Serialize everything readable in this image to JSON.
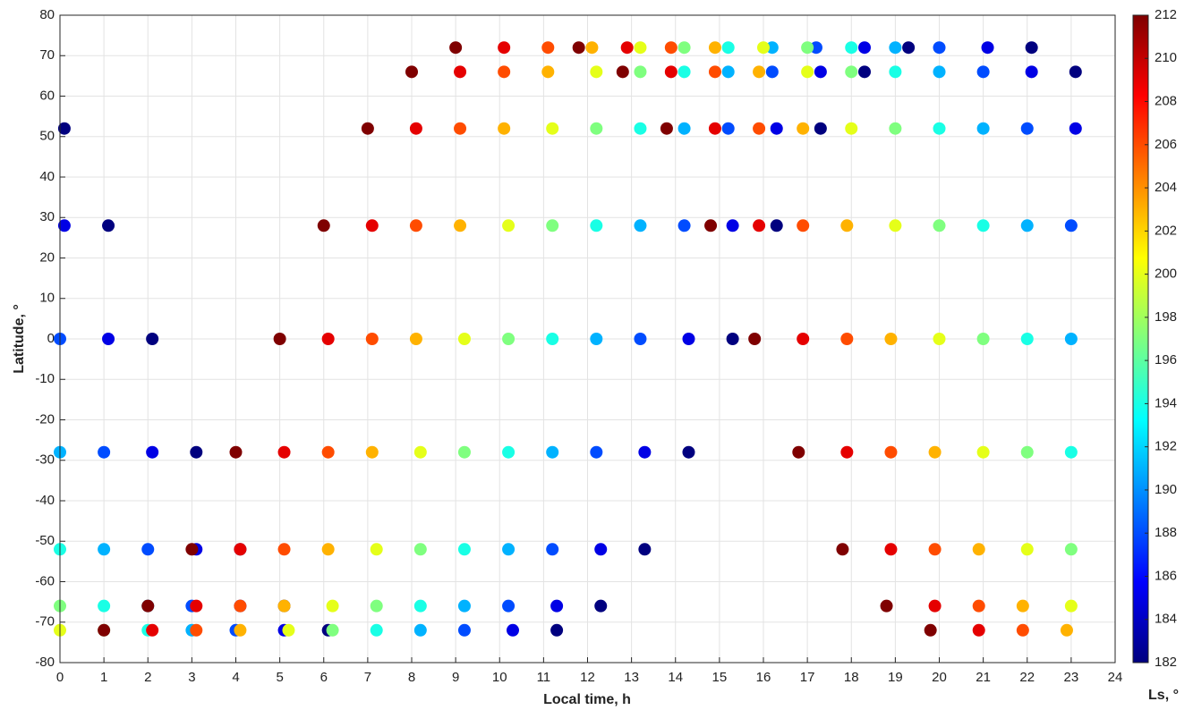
{
  "chart_data": {
    "type": "scatter",
    "xlabel": "Local time, h",
    "ylabel": "Latitude, °",
    "colorbar_label": "Ls, °",
    "xlim": [
      0,
      24
    ],
    "xticks": [
      0,
      1,
      2,
      3,
      4,
      5,
      6,
      7,
      8,
      9,
      10,
      11,
      12,
      13,
      14,
      15,
      16,
      17,
      18,
      19,
      20,
      21,
      22,
      23,
      24
    ],
    "ylim": [
      -80,
      80
    ],
    "yticks": [
      -80,
      -70,
      -60,
      -50,
      -40,
      -30,
      -20,
      -10,
      0,
      10,
      20,
      30,
      40,
      50,
      60,
      70,
      80
    ],
    "clim": [
      182,
      212
    ],
    "cticks": [
      182,
      184,
      186,
      188,
      190,
      192,
      194,
      196,
      198,
      200,
      202,
      204,
      206,
      208,
      210,
      212
    ],
    "colormap": [
      "#00007f",
      "#0000ff",
      "#007fff",
      "#00ffff",
      "#7fff7f",
      "#ffff00",
      "#ff7f00",
      "#ff0000",
      "#7f0000"
    ],
    "grid": true,
    "series": [
      {
        "ls": 182,
        "x": [
          11.3,
          12.3,
          13.3,
          14.3,
          15.3,
          16.3,
          17.3,
          18.3,
          19.3,
          22.1,
          23.1,
          0.1,
          1.1,
          2.1,
          3.1,
          4.1,
          5.1,
          6.1
        ],
        "y": [
          -72,
          -66,
          -52,
          -28,
          0,
          28,
          52,
          66,
          72,
          72,
          66,
          52,
          28,
          0,
          -28,
          -52,
          -66,
          -72
        ]
      },
      {
        "ls": 185,
        "x": [
          10.3,
          11.3,
          12.3,
          13.3,
          14.3,
          15.3,
          16.3,
          17.3,
          18.3,
          21.1,
          22.1,
          23.1,
          0.1,
          1.1,
          2.1,
          3.1,
          4.1,
          5.1
        ],
        "y": [
          -72,
          -66,
          -52,
          -28,
          0,
          28,
          52,
          66,
          72,
          72,
          66,
          52,
          28,
          0,
          -28,
          -52,
          -66,
          -72
        ]
      },
      {
        "ls": 188,
        "x": [
          9.2,
          10.2,
          11.2,
          12.2,
          13.2,
          14.2,
          15.2,
          16.2,
          17.2,
          20,
          21,
          22,
          23,
          0,
          1,
          2,
          3,
          4
        ],
        "y": [
          -72,
          -66,
          -52,
          -28,
          0,
          28,
          52,
          66,
          72,
          72,
          66,
          52,
          28,
          0,
          -28,
          -52,
          -66,
          -72
        ]
      },
      {
        "ls": 191,
        "x": [
          8.2,
          9.2,
          10.2,
          11.2,
          12.2,
          13.2,
          14.2,
          15.2,
          16.2,
          19,
          20,
          21,
          22,
          23,
          0,
          1,
          2,
          3
        ],
        "y": [
          -72,
          -66,
          -52,
          -28,
          0,
          28,
          52,
          66,
          72,
          72,
          66,
          52,
          28,
          0,
          -28,
          -52,
          -66,
          -72
        ]
      },
      {
        "ls": 194,
        "x": [
          7.2,
          8.2,
          9.2,
          10.2,
          11.2,
          12.2,
          13.2,
          14.2,
          15.2,
          18,
          19,
          20,
          21,
          22,
          23,
          0,
          1,
          2
        ],
        "y": [
          -72,
          -66,
          -52,
          -28,
          0,
          28,
          52,
          66,
          72,
          72,
          66,
          52,
          28,
          0,
          -28,
          -52,
          -66,
          -72
        ]
      },
      {
        "ls": 197,
        "x": [
          6.2,
          7.2,
          8.2,
          9.2,
          10.2,
          11.2,
          12.2,
          13.2,
          14.2,
          17,
          18,
          19,
          20,
          21,
          22,
          23,
          0,
          1
        ],
        "y": [
          -72,
          -66,
          -52,
          -28,
          0,
          28,
          52,
          66,
          72,
          72,
          66,
          52,
          28,
          0,
          -28,
          -52,
          -66,
          -72
        ]
      },
      {
        "ls": 200,
        "x": [
          5.2,
          6.2,
          7.2,
          8.2,
          9.2,
          10.2,
          11.2,
          12.2,
          13.2,
          16,
          17,
          18,
          19,
          20,
          21,
          22,
          23,
          0
        ],
        "y": [
          -72,
          -66,
          -52,
          -28,
          0,
          28,
          52,
          66,
          72,
          72,
          66,
          52,
          28,
          0,
          -28,
          -52,
          -66,
          -72
        ]
      },
      {
        "ls": 203,
        "x": [
          4.1,
          5.1,
          6.1,
          7.1,
          8.1,
          9.1,
          10.1,
          11.1,
          12.1,
          14.9,
          15.9,
          16.9,
          17.9,
          18.9,
          19.9,
          20.9,
          21.9,
          22.9
        ],
        "y": [
          -72,
          -66,
          -52,
          -28,
          0,
          28,
          52,
          66,
          72,
          72,
          66,
          52,
          28,
          0,
          -28,
          -52,
          -66,
          -72
        ]
      },
      {
        "ls": 206,
        "x": [
          3.1,
          4.1,
          5.1,
          6.1,
          7.1,
          8.1,
          9.1,
          10.1,
          11.1,
          13.9,
          14.9,
          15.9,
          16.9,
          17.9,
          18.9,
          19.9,
          20.9,
          21.9
        ],
        "y": [
          -72,
          -66,
          -52,
          -28,
          0,
          28,
          52,
          66,
          72,
          72,
          66,
          52,
          28,
          0,
          -28,
          -52,
          -66,
          -72
        ]
      },
      {
        "ls": 209,
        "x": [
          2.1,
          3.1,
          4.1,
          5.1,
          6.1,
          7.1,
          8.1,
          9.1,
          10.1,
          12.9,
          13.9,
          14.9,
          15.9,
          16.9,
          17.9,
          18.9,
          19.9,
          20.9
        ],
        "y": [
          -72,
          -66,
          -52,
          -28,
          0,
          28,
          52,
          66,
          72,
          72,
          66,
          52,
          28,
          0,
          -28,
          -52,
          -66,
          -72
        ]
      },
      {
        "ls": 212,
        "x": [
          1.0,
          2.0,
          3.0,
          4.0,
          5.0,
          6.0,
          7.0,
          8.0,
          9.0,
          11.8,
          12.8,
          13.8,
          14.8,
          15.8,
          16.8,
          17.8,
          18.8,
          19.8
        ],
        "y": [
          -72,
          -66,
          -52,
          -28,
          0,
          28,
          52,
          66,
          72,
          72,
          66,
          52,
          28,
          0,
          -28,
          -52,
          -66,
          -72
        ]
      }
    ]
  }
}
